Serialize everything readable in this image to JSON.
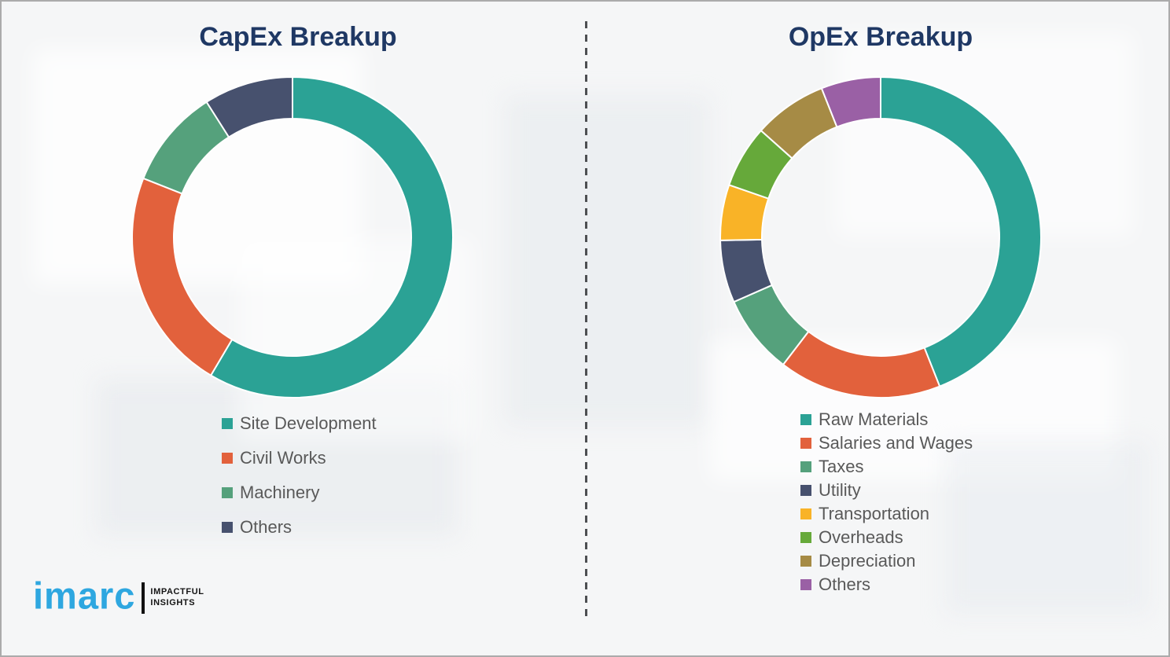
{
  "logo": {
    "brand": "imarc",
    "tagline_line1": "IMPACTFUL",
    "tagline_line2": "INSIGHTS",
    "brand_color": "#2ea7e0"
  },
  "style_colors": {
    "title_color": "#1f3864",
    "legend_text_color": "#595959",
    "divider_color": "#4d4f52",
    "background": "#f5f6f7",
    "segment_gap_color": "#ffffff"
  },
  "chart_data": [
    {
      "type": "pie",
      "donut": true,
      "title": "CapEx Breakup",
      "labels": [
        "Site Development",
        "Civil Works",
        "Machinery",
        "Others"
      ],
      "values": [
        58.5,
        22.5,
        10,
        9
      ],
      "colors": [
        "#2ba295",
        "#e2613c",
        "#55a17c",
        "#47516e"
      ],
      "values_estimated_from_arc_angles": true,
      "start_angle_deg": 0,
      "direction": "clockwise",
      "legend_position": "below"
    },
    {
      "type": "pie",
      "donut": true,
      "title": "OpEx Breakup",
      "labels": [
        "Raw Materials",
        "Salaries and Wages",
        "Taxes",
        "Utility",
        "Transportation",
        "Overheads",
        "Depreciation",
        "Others"
      ],
      "values": [
        44,
        16.4,
        8,
        6.3,
        5.6,
        6.3,
        7.4,
        6
      ],
      "colors": [
        "#2ba295",
        "#e2613c",
        "#55a17c",
        "#47516e",
        "#f9b327",
        "#66a93a",
        "#a68b45",
        "#9a60a5"
      ],
      "values_estimated_from_arc_angles": true,
      "start_angle_deg": 0,
      "direction": "clockwise",
      "legend_position": "below"
    }
  ]
}
